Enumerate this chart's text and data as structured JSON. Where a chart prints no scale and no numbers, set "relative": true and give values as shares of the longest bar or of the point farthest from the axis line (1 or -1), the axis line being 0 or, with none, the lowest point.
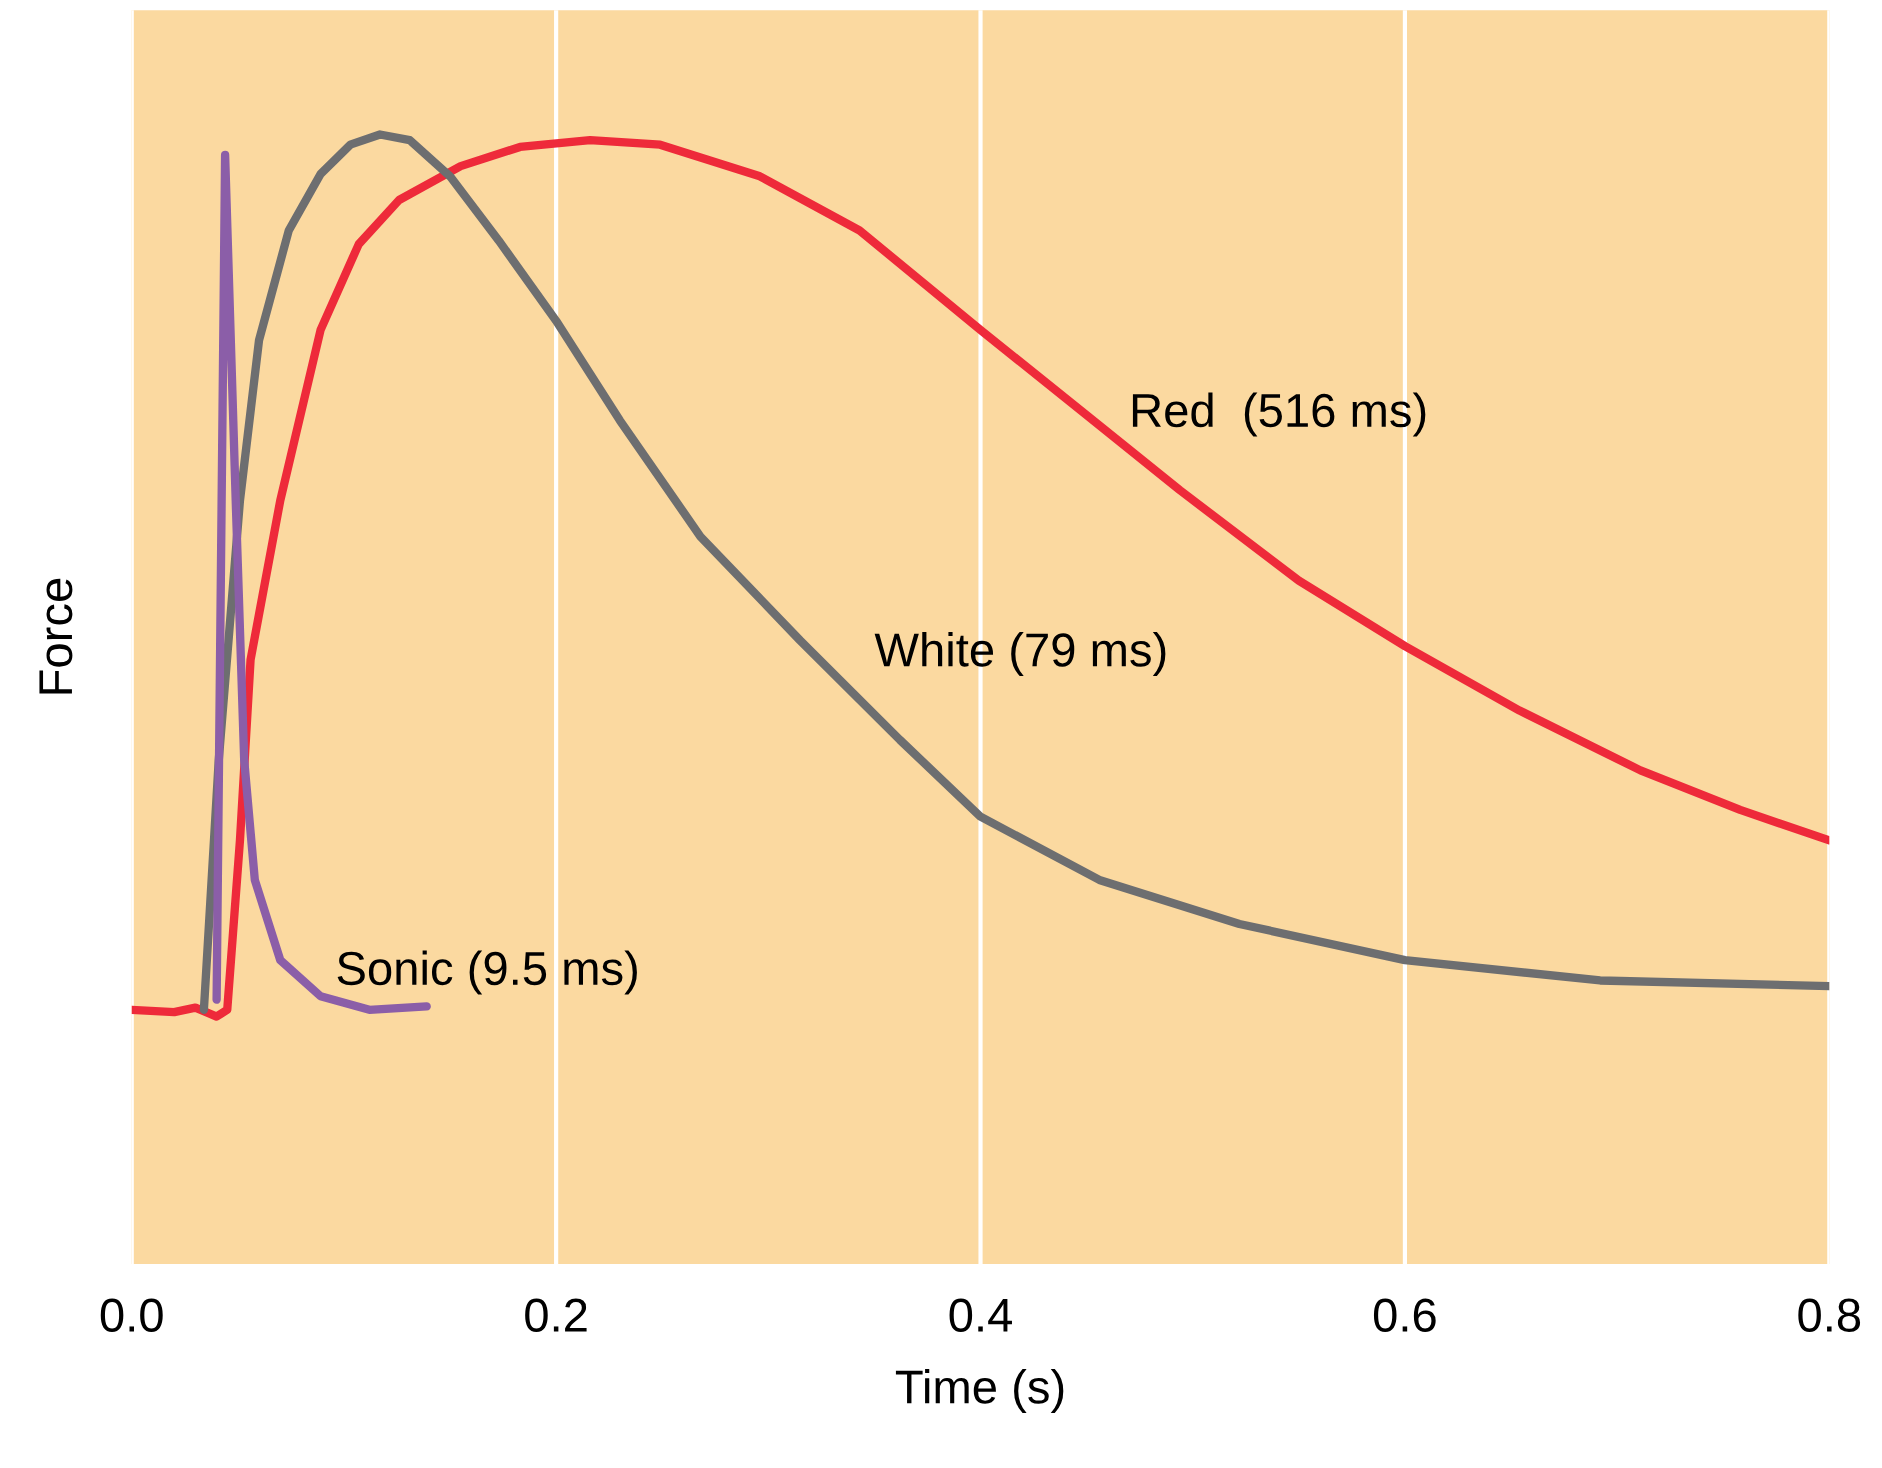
{
  "chart_data": {
    "type": "line",
    "relative": true,
    "xlabel": "Time (s)",
    "ylabel": "Force",
    "xlim": [
      0,
      0.8
    ],
    "xticks": [
      {
        "value": 0,
        "label": "0.0"
      },
      0.2,
      0.4,
      0.6,
      0.8
    ],
    "grid": "x",
    "tick_labels": "x",
    "legend": false,
    "series": [
      {
        "name": "Red  (516 ms)",
        "color": "#ee2a3a",
        "x": [
          0,
          0.02,
          0.03,
          0.04,
          0.045,
          0.051,
          0.056,
          0.07,
          0.089,
          0.107,
          0.126,
          0.155,
          0.183,
          0.216,
          0.249,
          0.296,
          0.343,
          0.4,
          0.447,
          0.494,
          0.55,
          0.6,
          0.654,
          0.711,
          0.758,
          0.8
        ],
        "values": [
          0.225,
          0.223,
          0.227,
          0.219,
          0.225,
          0.375,
          0.535,
          0.676,
          0.827,
          0.903,
          0.942,
          0.972,
          0.989,
          0.995,
          0.991,
          0.963,
          0.915,
          0.827,
          0.756,
          0.685,
          0.605,
          0.547,
          0.49,
          0.437,
          0.402,
          0.375
        ]
      },
      {
        "name": "White (79 ms)",
        "color": "#6d6e70",
        "x": [
          0.034,
          0.041,
          0.051,
          0.06,
          0.074,
          0.089,
          0.103,
          0.117,
          0.131,
          0.15,
          0.173,
          0.2,
          0.23,
          0.268,
          0.315,
          0.362,
          0.4,
          0.456,
          0.522,
          0.6,
          0.692,
          0.8
        ],
        "values": [
          0.225,
          0.446,
          0.676,
          0.818,
          0.915,
          0.965,
          0.991,
          1,
          0.995,
          0.963,
          0.906,
          0.835,
          0.747,
          0.644,
          0.552,
          0.464,
          0.396,
          0.34,
          0.301,
          0.269,
          0.251,
          0.246
        ]
      },
      {
        "name": "Sonic (9.5 ms)",
        "color": "#8b5ea8",
        "x": [
          0.04,
          0.044,
          0.049,
          0.053,
          0.058,
          0.07,
          0.089,
          0.112,
          0.139
        ],
        "values": [
          0.234,
          0.982,
          0.676,
          0.446,
          0.34,
          0.269,
          0.237,
          0.225,
          0.228
        ]
      }
    ]
  }
}
